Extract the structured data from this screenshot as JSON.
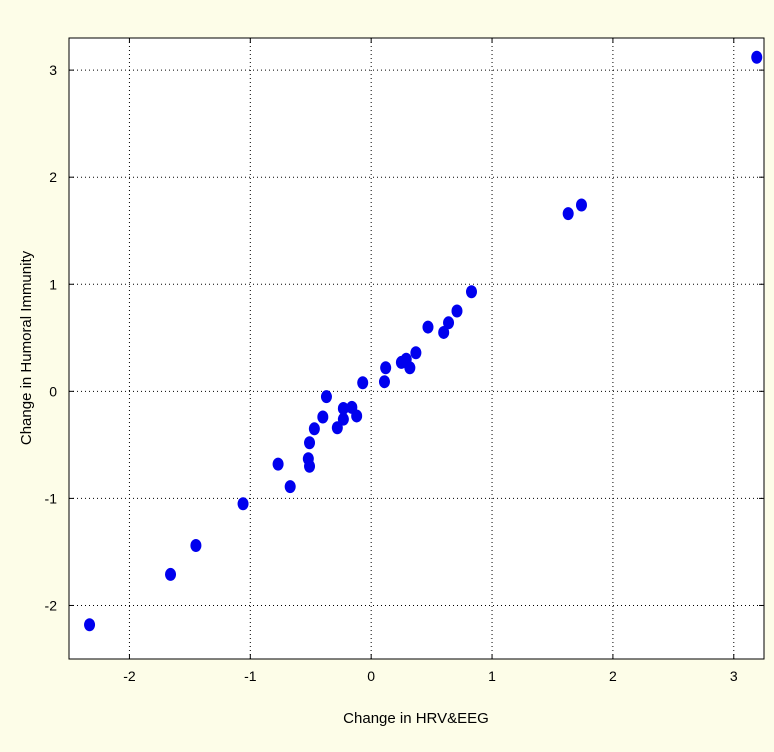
{
  "chart_data": {
    "type": "scatter",
    "title": "",
    "xlabel": "Change in HRV&EEG",
    "ylabel": "Change in Humoral Immunity",
    "xlim": [
      -2.5,
      3.25
    ],
    "ylim": [
      -2.5,
      3.3
    ],
    "x_ticks": [
      -2,
      -1,
      0,
      1,
      2,
      3
    ],
    "y_ticks": [
      -2,
      -1,
      0,
      1,
      2,
      3
    ],
    "x_tick_labels": [
      "-2",
      "-1",
      "0",
      "1",
      "2",
      "3"
    ],
    "y_tick_labels": [
      "-2",
      "-1",
      "0",
      "1",
      "2",
      "3"
    ],
    "grid": true,
    "grid_style": "dotted",
    "marker_color": "#0000ee",
    "points": [
      {
        "x": -2.33,
        "y": -2.18
      },
      {
        "x": -1.66,
        "y": -1.71
      },
      {
        "x": -1.45,
        "y": -1.44
      },
      {
        "x": -1.06,
        "y": -1.05
      },
      {
        "x": -0.77,
        "y": -0.68
      },
      {
        "x": -0.67,
        "y": -0.89
      },
      {
        "x": -0.52,
        "y": -0.63
      },
      {
        "x": -0.51,
        "y": -0.7
      },
      {
        "x": -0.51,
        "y": -0.48
      },
      {
        "x": -0.47,
        "y": -0.35
      },
      {
        "x": -0.4,
        "y": -0.24
      },
      {
        "x": -0.37,
        "y": -0.05
      },
      {
        "x": -0.28,
        "y": -0.34
      },
      {
        "x": -0.23,
        "y": -0.26
      },
      {
        "x": -0.23,
        "y": -0.16
      },
      {
        "x": -0.16,
        "y": -0.15
      },
      {
        "x": -0.12,
        "y": -0.23
      },
      {
        "x": -0.07,
        "y": 0.08
      },
      {
        "x": 0.11,
        "y": 0.09
      },
      {
        "x": 0.12,
        "y": 0.22
      },
      {
        "x": 0.25,
        "y": 0.27
      },
      {
        "x": 0.29,
        "y": 0.3
      },
      {
        "x": 0.32,
        "y": 0.22
      },
      {
        "x": 0.37,
        "y": 0.36
      },
      {
        "x": 0.47,
        "y": 0.6
      },
      {
        "x": 0.6,
        "y": 0.55
      },
      {
        "x": 0.64,
        "y": 0.64
      },
      {
        "x": 0.71,
        "y": 0.75
      },
      {
        "x": 0.83,
        "y": 0.93
      },
      {
        "x": 1.63,
        "y": 1.66
      },
      {
        "x": 1.74,
        "y": 1.74
      },
      {
        "x": 3.19,
        "y": 3.12
      }
    ]
  }
}
